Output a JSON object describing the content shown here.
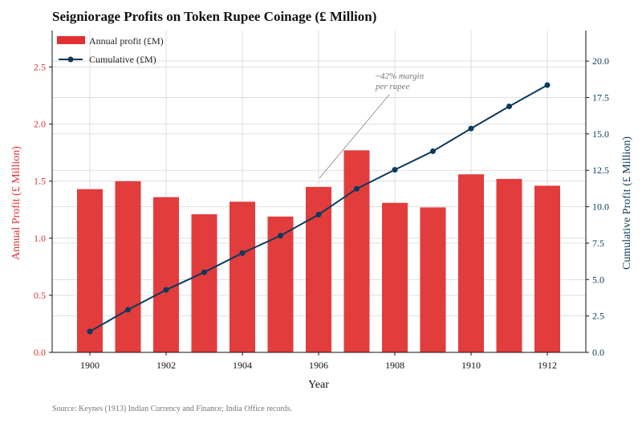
{
  "chart_data": {
    "type": "bar+line",
    "title": "Seigniorage Profits on Token Rupee Coinage (£ Million)",
    "xlabel": "Year",
    "ylabel_left": "Annual Profit (£ Million)",
    "ylabel_right": "Cumulative Profit (£ Million)",
    "categories": [
      1900,
      1901,
      1902,
      1903,
      1904,
      1905,
      1906,
      1907,
      1908,
      1909,
      1910,
      1911,
      1912
    ],
    "x_ticks": [
      "1900",
      "1902",
      "1904",
      "1906",
      "1908",
      "1910",
      "1912"
    ],
    "y_left_ticks": [
      "0.0",
      "0.5",
      "1.0",
      "1.5",
      "2.0",
      "2.5"
    ],
    "y_right_ticks": [
      "0.0",
      "2.5",
      "5.0",
      "7.5",
      "10.0",
      "12.5",
      "15.0",
      "17.5",
      "20.0"
    ],
    "ylim_left": [
      0,
      2.82
    ],
    "ylim_right": [
      0,
      22.1
    ],
    "grid": true,
    "legend_position": "top-left",
    "series": [
      {
        "name": "Annual profit (£M)",
        "type": "bar",
        "axis": "left",
        "color": "#e03131",
        "values": [
          1.43,
          1.5,
          1.36,
          1.21,
          1.32,
          1.19,
          1.45,
          1.77,
          1.31,
          1.27,
          1.56,
          1.52,
          1.46
        ]
      },
      {
        "name": "Cumulative (£M)",
        "type": "line",
        "axis": "right",
        "color": "#0b3a5c",
        "values": [
          1.43,
          2.93,
          4.29,
          5.5,
          6.82,
          8.01,
          9.46,
          11.23,
          12.54,
          13.81,
          15.37,
          16.89,
          18.35
        ]
      }
    ],
    "annotation": {
      "text_lines": [
        "~42% margin",
        "per rupee"
      ],
      "points_to_year": 1906
    },
    "source": "Source: Keynes (1913) Indian Currency and Finance; India Office records."
  }
}
